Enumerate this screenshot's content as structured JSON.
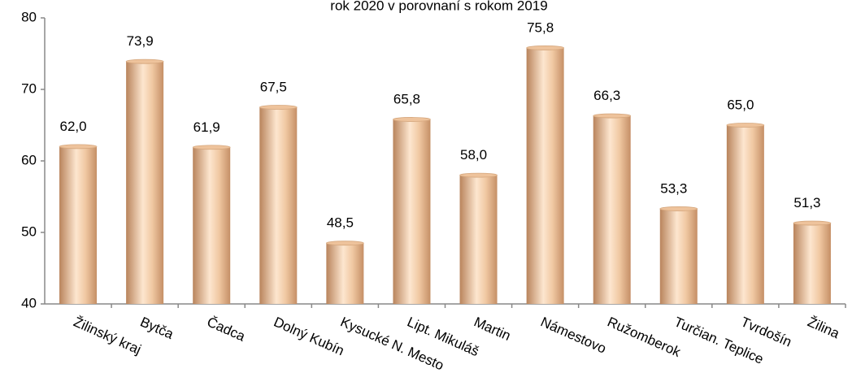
{
  "chart_data": {
    "type": "bar",
    "title": "rok 2020 v porovnaní s rokom 2019",
    "categories": [
      "Žilinský kraj",
      "Bytča",
      "Čadca",
      "Dolný Kubín",
      "Kysucké N. Mesto",
      "Lipt. Mikuláš",
      "Martin",
      "Námestovo",
      "Ružomberok",
      "Turčian. Teplice",
      "Tvrdošín",
      "Žilina"
    ],
    "values": [
      62.0,
      73.9,
      61.9,
      67.5,
      48.5,
      65.8,
      58.0,
      75.8,
      66.3,
      53.3,
      65.0,
      51.3
    ],
    "value_labels": [
      "62,0",
      "73,9",
      "61,9",
      "67,5",
      "48,5",
      "65,8",
      "58,0",
      "75,8",
      "66,3",
      "53,3",
      "65,0",
      "51,3"
    ],
    "color": "#eec39c",
    "ylim": [
      40,
      80
    ],
    "yticks": [
      40,
      50,
      60,
      70,
      80
    ],
    "grid": false
  }
}
